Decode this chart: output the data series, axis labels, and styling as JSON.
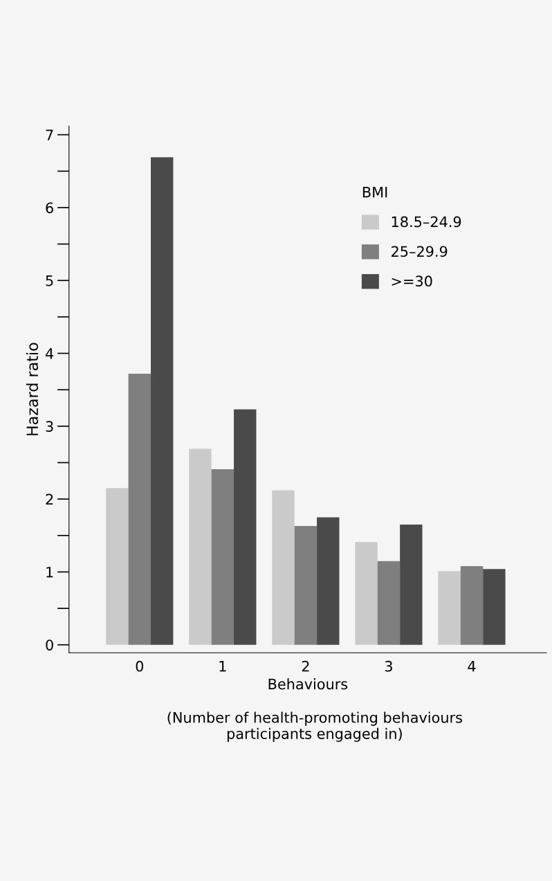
{
  "chart_data": {
    "type": "bar",
    "categories": [
      "0",
      "1",
      "2",
      "3",
      "4"
    ],
    "series": [
      {
        "name": "18.5–24.9",
        "color": "#cacaca",
        "values": [
          2.15,
          2.69,
          2.12,
          1.41,
          1.01
        ]
      },
      {
        "name": "25–29.9",
        "color": "#7f7f7f",
        "values": [
          3.72,
          2.41,
          1.63,
          1.15,
          1.08
        ]
      },
      {
        "name": ">=30",
        "color": "#4a4a4a",
        "values": [
          6.69,
          3.23,
          1.75,
          1.65,
          1.04
        ]
      }
    ],
    "xlabel": "Behaviours",
    "ylabel": "Hazard ratio",
    "legend_title": "BMI",
    "annotations": [
      "(Number of health-promoting behaviours\nparticipants engaged in)"
    ],
    "ylim": [
      -0.11,
      7.12
    ],
    "yticks": [
      0,
      1,
      2,
      3,
      4,
      5,
      6,
      7
    ],
    "legend": "top right",
    "grid": false
  }
}
